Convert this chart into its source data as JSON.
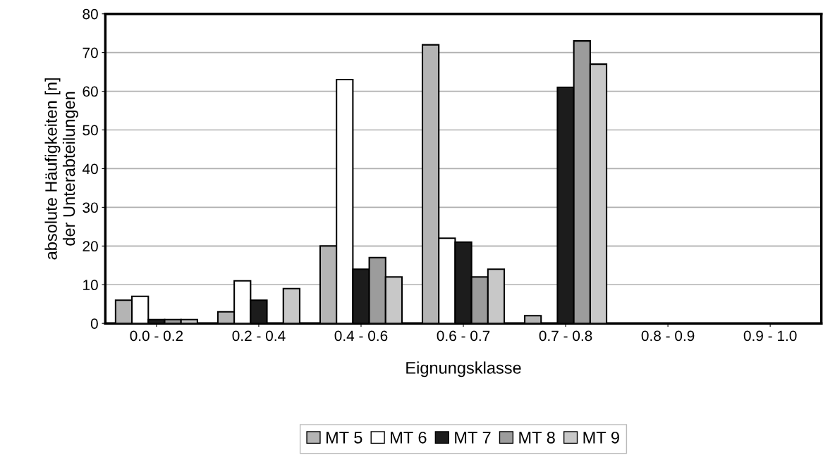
{
  "chart_data": {
    "type": "bar",
    "xlabel": "Eignungsklasse",
    "ylabel": "absolute Häufigkeiten [n]\nder Unterabteilungen",
    "categories": [
      "0.0 - 0.2",
      "0.2 - 0.4",
      "0.4 - 0.6",
      "0.6 - 0.7",
      "0.7 - 0.8",
      "0.8 - 0.9",
      "0.9 - 1.0"
    ],
    "series": [
      {
        "name": "MT 5",
        "color": "#b4b4b4",
        "values": [
          6,
          3,
          20,
          72,
          2,
          0,
          0
        ]
      },
      {
        "name": "MT 6",
        "color": "#ffffff",
        "values": [
          7,
          11,
          63,
          22,
          0,
          0,
          0
        ]
      },
      {
        "name": "MT 7",
        "color": "#1c1c1c",
        "values": [
          1,
          6,
          14,
          21,
          61,
          0,
          0
        ]
      },
      {
        "name": "MT 8",
        "color": "#9c9c9c",
        "values": [
          1,
          0,
          17,
          12,
          73,
          0,
          0
        ]
      },
      {
        "name": "MT 9",
        "color": "#c8c8c8",
        "values": [
          1,
          9,
          12,
          14,
          67,
          0,
          0
        ]
      }
    ],
    "ylim": [
      0,
      80
    ],
    "yticks": [
      0,
      10,
      20,
      30,
      40,
      50,
      60,
      70,
      80
    ],
    "grid": "y",
    "legend": "bottom"
  }
}
